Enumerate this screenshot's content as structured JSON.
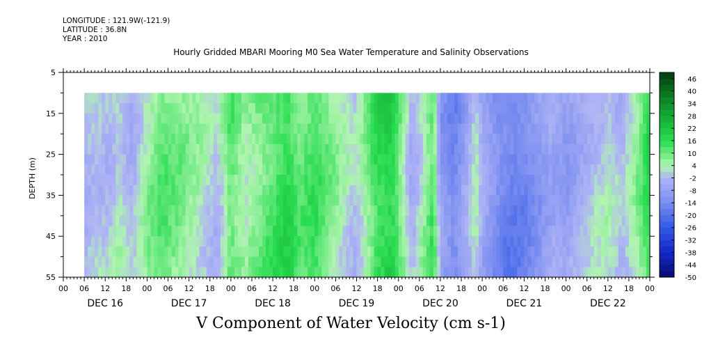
{
  "header": {
    "longitude": "LONGITUDE : 121.9W(-121.9)",
    "latitude": "LATITUDE : 36.8N",
    "year": "YEAR : 2010"
  },
  "chart_data": {
    "type": "heatmap",
    "title": "Hourly Gridded MBARI Mooring M0 Sea Water Temperature and Salinity Observations",
    "xlabel": "V Component of Water Velocity (cm s-1)",
    "ylabel": "DEPTH (m)",
    "ylim": [
      55,
      5
    ],
    "y_ticks": [
      5,
      15,
      25,
      35,
      45,
      55
    ],
    "x_hour_ticks": [
      "00",
      "06",
      "12",
      "18",
      "00",
      "06",
      "12",
      "18",
      "00",
      "06",
      "12",
      "18",
      "00",
      "06",
      "12",
      "18",
      "00",
      "06",
      "12",
      "18",
      "00",
      "06",
      "12",
      "18",
      "00",
      "06",
      "12",
      "18",
      "00"
    ],
    "x_day_labels": [
      "DEC 16",
      "DEC 17",
      "DEC 18",
      "DEC 19",
      "DEC 20",
      "DEC 21",
      "DEC 22"
    ],
    "x_range_hours": [
      0,
      168
    ],
    "data_start_hour": 6,
    "data_depth_range": [
      10,
      55
    ],
    "colorbar": {
      "labels": [
        46,
        40,
        34,
        28,
        22,
        16,
        10,
        4,
        -2,
        -8,
        -14,
        -20,
        -26,
        -32,
        -38,
        -44,
        -50
      ],
      "range": [
        -50,
        49
      ],
      "step": 3
    },
    "column_values": [
      {
        "hour": 6,
        "v": -2
      },
      {
        "hour": 9,
        "v": 0
      },
      {
        "hour": 12,
        "v": -1
      },
      {
        "hour": 16,
        "v": 2
      },
      {
        "hour": 20,
        "v": -3
      },
      {
        "hour": 24,
        "v": 6
      },
      {
        "hour": 28,
        "v": 11
      },
      {
        "hour": 32,
        "v": 9
      },
      {
        "hour": 36,
        "v": 6
      },
      {
        "hour": 40,
        "v": 3
      },
      {
        "hour": 44,
        "v": -2
      },
      {
        "hour": 48,
        "v": 12
      },
      {
        "hour": 52,
        "v": 5
      },
      {
        "hour": 56,
        "v": 9
      },
      {
        "hour": 60,
        "v": 13
      },
      {
        "hour": 64,
        "v": 17
      },
      {
        "hour": 68,
        "v": 10
      },
      {
        "hour": 72,
        "v": 14
      },
      {
        "hour": 76,
        "v": 8
      },
      {
        "hour": 80,
        "v": 3
      },
      {
        "hour": 84,
        "v": -1
      },
      {
        "hour": 88,
        "v": 11
      },
      {
        "hour": 90,
        "v": 16
      },
      {
        "hour": 94,
        "v": 19
      },
      {
        "hour": 96,
        "v": 12
      },
      {
        "hour": 100,
        "v": -4
      },
      {
        "hour": 104,
        "v": 8
      },
      {
        "hour": 106,
        "v": 14
      },
      {
        "hour": 108,
        "v": -9
      },
      {
        "hour": 112,
        "v": -15
      },
      {
        "hour": 116,
        "v": -5
      },
      {
        "hour": 118,
        "v": 2
      },
      {
        "hour": 120,
        "v": -6
      },
      {
        "hour": 124,
        "v": -13
      },
      {
        "hour": 128,
        "v": -17
      },
      {
        "hour": 132,
        "v": -15
      },
      {
        "hour": 136,
        "v": -10
      },
      {
        "hour": 140,
        "v": -5
      },
      {
        "hour": 144,
        "v": -8
      },
      {
        "hour": 148,
        "v": -4
      },
      {
        "hour": 152,
        "v": -1
      },
      {
        "hour": 156,
        "v": 2
      },
      {
        "hour": 160,
        "v": -3
      },
      {
        "hour": 164,
        "v": 5
      },
      {
        "hour": 168,
        "v": 16
      }
    ]
  }
}
